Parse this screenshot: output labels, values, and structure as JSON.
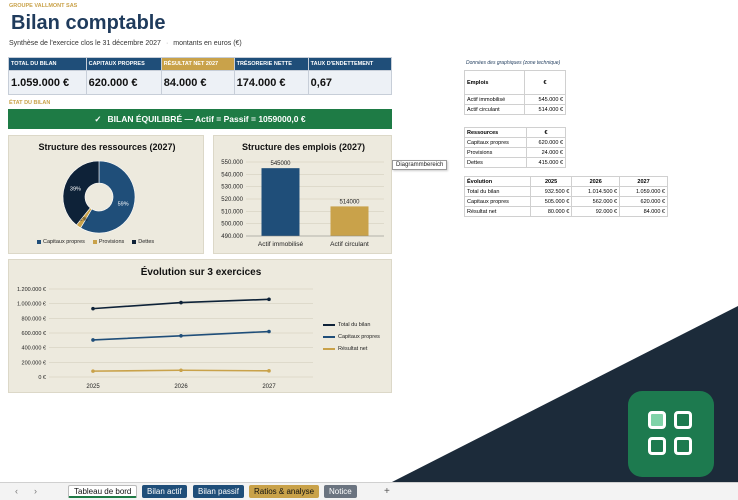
{
  "header": {
    "company": "GROUPE VALLMONT SAS",
    "title": "Bilan comptable",
    "subtitle_period": "Synthèse de l'exercice clos le 31 décembre 2027",
    "subtitle_sep": "·",
    "subtitle_units": "montants en euros (€)"
  },
  "kpis": [
    {
      "label": "TOTAL DU BILAN",
      "value": "1.059.000 €",
      "highlight": false
    },
    {
      "label": "CAPITAUX PROPRES",
      "value": "620.000 €",
      "highlight": false
    },
    {
      "label": "RÉSULTAT NET 2027",
      "value": "84.000 €",
      "highlight": true
    },
    {
      "label": "TRÉSORERIE NETTE",
      "value": "174.000 €",
      "highlight": false
    },
    {
      "label": "TAUX D'ENDETTEMENT",
      "value": "0,67",
      "highlight": false
    }
  ],
  "status": {
    "section_label": "ÉTAT DU BILAN",
    "check_glyph": "✓",
    "banner_text": "BILAN ÉQUILIBRÉ  —  Actif = Passif = 1059000,0 €"
  },
  "tooltip": "Diagrammbereich",
  "colors": {
    "navy": "#1f4e79",
    "gold": "#c9a24a",
    "green": "#1e7b45",
    "dark_navy": "#0e2238",
    "panel": "#edeade"
  },
  "chart_data": [
    {
      "type": "pie",
      "title": "Structure des ressources (2027)",
      "categories": [
        "Capitaux propres",
        "Provisions",
        "Dettes"
      ],
      "values": [
        620000,
        24000,
        415000
      ],
      "data_labels": [
        "59%",
        "2%",
        "39%"
      ],
      "colors": [
        "#1f4e79",
        "#c9a24a",
        "#0e2238"
      ],
      "legend": "bottom"
    },
    {
      "type": "bar",
      "title": "Structure des emplois (2027)",
      "categories": [
        "Actif immobilisé",
        "Actif circulant"
      ],
      "values": [
        545000,
        514000
      ],
      "data_labels": [
        "545000",
        "514000"
      ],
      "colors": [
        "#1f4e79",
        "#c9a24a"
      ],
      "ylim": [
        490000,
        550000
      ],
      "yticks": [
        490000,
        500000,
        510000,
        520000,
        530000,
        540000,
        550000
      ],
      "ytick_labels": [
        "490.000",
        "500.000",
        "510.000",
        "520.000",
        "530.000",
        "540.000",
        "550.000"
      ],
      "grid": true
    },
    {
      "type": "line",
      "title": "Évolution sur 3 exercices",
      "categories": [
        "2025",
        "2026",
        "2027"
      ],
      "series": [
        {
          "name": "Total du bilan",
          "values": [
            932500,
            1014500,
            1059000
          ],
          "color": "#0e2238"
        },
        {
          "name": "Capitaux propres",
          "values": [
            505000,
            562000,
            620000
          ],
          "color": "#1f4e79"
        },
        {
          "name": "Résultat net",
          "values": [
            80000,
            92000,
            84000
          ],
          "color": "#c9a24a"
        }
      ],
      "ylim": [
        0,
        1200000
      ],
      "yticks": [
        0,
        200000,
        400000,
        600000,
        800000,
        1000000,
        1200000
      ],
      "ytick_labels": [
        "0 €",
        "200.000 €",
        "400.000 €",
        "600.000 €",
        "800.000 €",
        "1.000.000 €",
        "1.200.000 €"
      ],
      "legend": "right",
      "grid": true
    }
  ],
  "side": {
    "note": "Données des graphiques (zone technique)",
    "emplois": {
      "head": [
        "Emplois",
        "€"
      ],
      "rows": [
        [
          "Actif immobilisé",
          "545.000 €"
        ],
        [
          "Actif circulant",
          "514.000 €"
        ]
      ]
    },
    "ressources": {
      "head": [
        "Ressources",
        "€"
      ],
      "rows": [
        [
          "Capitaux propres",
          "620.000 €"
        ],
        [
          "Provisions",
          "24.000 €"
        ],
        [
          "Dettes",
          "415.000 €"
        ]
      ]
    },
    "evolution": {
      "head": [
        "Évolution",
        "2025",
        "2026",
        "2027"
      ],
      "rows": [
        [
          "Total du bilan",
          "932.500 €",
          "1.014.500 €",
          "1.059.000 €"
        ],
        [
          "Capitaux propres",
          "505.000 €",
          "562.000 €",
          "620.000 €"
        ],
        [
          "Résultat net",
          "80.000 €",
          "92.000 €",
          "84.000 €"
        ]
      ]
    }
  },
  "tabs": {
    "prev": "‹",
    "next": "›",
    "add": "+",
    "items": [
      {
        "label": "Tableau de bord",
        "style": "active"
      },
      {
        "label": "Bilan actif",
        "style": "blue"
      },
      {
        "label": "Bilan passif",
        "style": "blue"
      },
      {
        "label": "Ratios & analyse",
        "style": "gold"
      },
      {
        "label": "Notice",
        "style": "grey"
      }
    ]
  }
}
